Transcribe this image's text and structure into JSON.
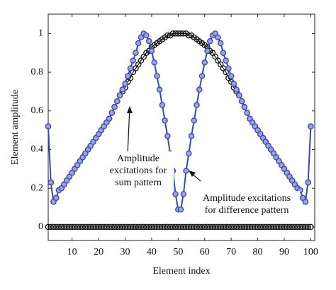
{
  "chart_data": {
    "type": "line",
    "x_label": "Element index",
    "y_label": "Element amplitude",
    "xlim": [
      1,
      101.5
    ],
    "ylim": [
      -0.07,
      1.1
    ],
    "xticks": [
      10,
      20,
      30,
      40,
      50,
      60,
      70,
      80,
      90,
      100
    ],
    "yticks": [
      0,
      0.2,
      0.4,
      0.6,
      0.8,
      1
    ],
    "x": [
      1,
      2,
      3,
      4,
      5,
      6,
      7,
      8,
      9,
      10,
      11,
      12,
      13,
      14,
      15,
      16,
      17,
      18,
      19,
      20,
      21,
      22,
      23,
      24,
      25,
      26,
      27,
      28,
      29,
      30,
      31,
      32,
      33,
      34,
      35,
      36,
      37,
      38,
      39,
      40,
      41,
      42,
      43,
      44,
      45,
      46,
      47,
      48,
      49,
      50,
      51,
      52,
      53,
      54,
      55,
      56,
      57,
      58,
      59,
      60,
      61,
      62,
      63,
      64,
      65,
      66,
      67,
      68,
      69,
      70,
      71,
      72,
      73,
      74,
      75,
      76,
      77,
      78,
      79,
      80,
      81,
      82,
      83,
      84,
      85,
      86,
      87,
      88,
      89,
      90,
      91,
      92,
      93,
      94,
      95,
      96,
      97,
      98,
      99,
      100
    ],
    "series": [
      {
        "color": "#111111",
        "values": [
          0,
          0,
          0,
          0,
          0,
          0,
          0,
          0,
          0,
          0,
          0,
          0,
          0,
          0,
          0,
          0,
          0,
          0,
          0,
          0,
          0,
          0,
          0,
          0,
          0,
          0,
          0,
          0,
          0,
          0,
          0,
          0,
          0,
          0,
          0,
          0,
          0,
          0,
          0,
          0,
          0,
          0,
          0,
          0,
          0,
          0,
          0,
          0,
          0,
          0,
          0,
          0,
          0,
          0,
          0,
          0,
          0,
          0,
          0,
          0,
          0,
          0,
          0,
          0,
          0,
          0,
          0,
          0,
          0,
          0,
          0,
          0,
          0,
          0,
          0,
          0,
          0,
          0,
          0,
          0,
          0,
          0,
          0,
          0,
          0,
          0,
          0,
          0,
          0,
          0,
          0,
          0,
          0,
          0,
          0,
          0,
          0,
          0,
          0,
          0
        ]
      },
      {
        "color": "#111111",
        "values": [
          0.52,
          0.23,
          0.13,
          0.15,
          0.19,
          0.2,
          0.22,
          0.24,
          0.26,
          0.28,
          0.3,
          0.32,
          0.34,
          0.36,
          0.38,
          0.4,
          0.42,
          0.44,
          0.46,
          0.48,
          0.5,
          0.52,
          0.54,
          0.56,
          0.59,
          0.62,
          0.65,
          0.68,
          0.7,
          0.72,
          0.75,
          0.77,
          0.8,
          0.82,
          0.84,
          0.86,
          0.88,
          0.9,
          0.91,
          0.93,
          0.94,
          0.95,
          0.96,
          0.97,
          0.98,
          0.99,
          0.99,
          1,
          1,
          1,
          1,
          1,
          1,
          0.99,
          0.99,
          0.98,
          0.97,
          0.96,
          0.95,
          0.94,
          0.93,
          0.91,
          0.9,
          0.88,
          0.86,
          0.84,
          0.82,
          0.8,
          0.77,
          0.75,
          0.72,
          0.7,
          0.68,
          0.65,
          0.62,
          0.59,
          0.56,
          0.54,
          0.52,
          0.5,
          0.48,
          0.46,
          0.44,
          0.42,
          0.4,
          0.38,
          0.36,
          0.34,
          0.32,
          0.3,
          0.28,
          0.26,
          0.24,
          0.22,
          0.2,
          0.19,
          0.15,
          0.13,
          0.23,
          0.52
        ]
      },
      {
        "color": "#3a48b4",
        "values": [
          0.52,
          0.23,
          0.13,
          0.15,
          0.19,
          0.2,
          0.22,
          0.24,
          0.26,
          0.28,
          0.3,
          0.32,
          0.34,
          0.36,
          0.38,
          0.4,
          0.42,
          0.44,
          0.46,
          0.48,
          0.5,
          0.52,
          0.54,
          0.56,
          0.59,
          0.62,
          0.65,
          0.68,
          0.71,
          0.74,
          0.78,
          0.82,
          0.86,
          0.9,
          0.95,
          0.98,
          1,
          0.99,
          0.96,
          0.91,
          0.85,
          0.78,
          0.71,
          0.63,
          0.55,
          0.47,
          0.38,
          0.29,
          0.17,
          0.09,
          0.09,
          0.17,
          0.29,
          0.38,
          0.47,
          0.55,
          0.63,
          0.71,
          0.78,
          0.85,
          0.91,
          0.96,
          0.99,
          1,
          0.98,
          0.95,
          0.9,
          0.86,
          0.82,
          0.78,
          0.74,
          0.71,
          0.68,
          0.65,
          0.62,
          0.59,
          0.56,
          0.54,
          0.52,
          0.5,
          0.48,
          0.46,
          0.44,
          0.42,
          0.4,
          0.38,
          0.36,
          0.34,
          0.32,
          0.3,
          0.28,
          0.26,
          0.24,
          0.22,
          0.2,
          0.19,
          0.15,
          0.13,
          0.23,
          0.52
        ]
      }
    ],
    "annotations": [
      {
        "lines": [
          "Amplitude",
          "excitations for",
          "sum pattern"
        ]
      },
      {
        "lines": [
          "Amplitude excitations",
          "for difference pattern"
        ]
      }
    ]
  }
}
